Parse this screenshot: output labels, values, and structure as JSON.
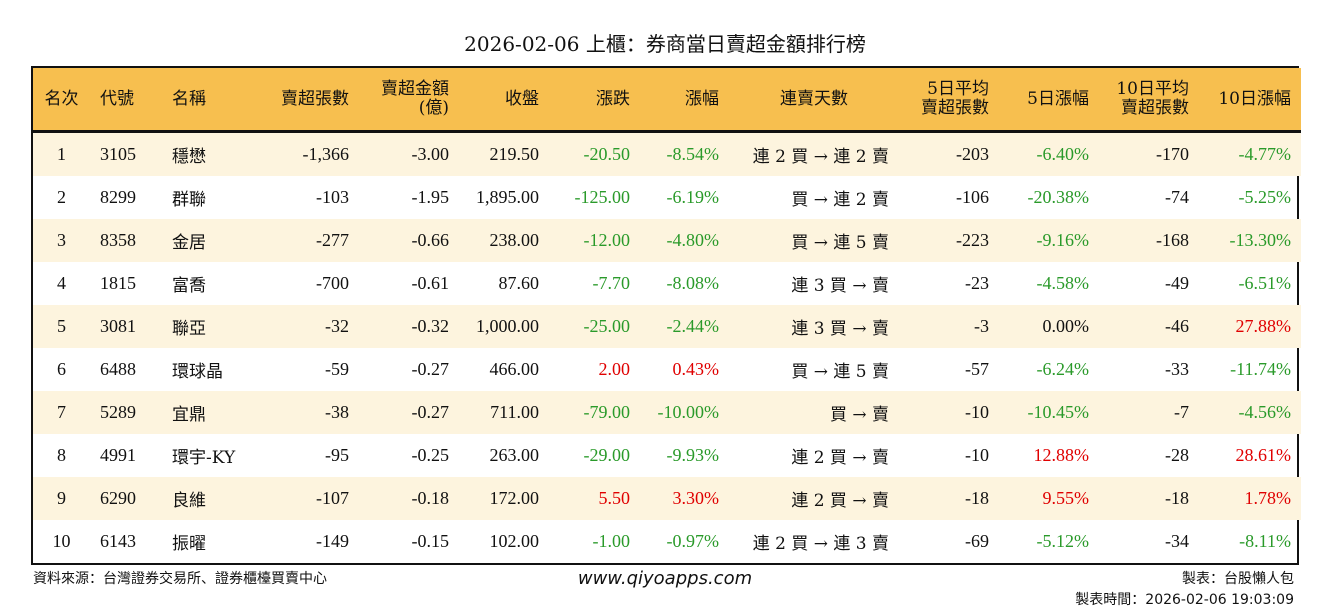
{
  "title": "2026-02-06 上櫃：券商當日賣超金額排行榜",
  "colors": {
    "header_bg": "#f7bf4f",
    "odd_row_bg": "#fdf4de",
    "up": "#e00000",
    "down": "#2a9a2a"
  },
  "headers": [
    "名次",
    "代號",
    "名稱",
    "賣超張數",
    "賣超金額\n(億)",
    "收盤",
    "漲跌",
    "漲幅",
    "連賣天數",
    "5日平均\n賣超張數",
    "5日漲幅",
    "10日平均\n賣超張數",
    "10日漲幅"
  ],
  "rows": [
    [
      "1",
      "3105",
      "穩懋",
      "-1,366",
      "-3.00",
      "219.50",
      "-20.50",
      "-8.54%",
      "連 2 買 → 連 2 賣",
      "-203",
      "-6.40%",
      "-170",
      "-4.77%"
    ],
    [
      "2",
      "8299",
      "群聯",
      "-103",
      "-1.95",
      "1,895.00",
      "-125.00",
      "-6.19%",
      "買 → 連 2 賣",
      "-106",
      "-20.38%",
      "-74",
      "-5.25%"
    ],
    [
      "3",
      "8358",
      "金居",
      "-277",
      "-0.66",
      "238.00",
      "-12.00",
      "-4.80%",
      "買 → 連 5 賣",
      "-223",
      "-9.16%",
      "-168",
      "-13.30%"
    ],
    [
      "4",
      "1815",
      "富喬",
      "-700",
      "-0.61",
      "87.60",
      "-7.70",
      "-8.08%",
      "連 3 買 → 賣",
      "-23",
      "-4.58%",
      "-49",
      "-6.51%"
    ],
    [
      "5",
      "3081",
      "聯亞",
      "-32",
      "-0.32",
      "1,000.00",
      "-25.00",
      "-2.44%",
      "連 3 買 → 賣",
      "-3",
      "0.00%",
      "-46",
      "27.88%"
    ],
    [
      "6",
      "6488",
      "環球晶",
      "-59",
      "-0.27",
      "466.00",
      "2.00",
      "0.43%",
      "買 → 連 5 賣",
      "-57",
      "-6.24%",
      "-33",
      "-11.74%"
    ],
    [
      "7",
      "5289",
      "宜鼎",
      "-38",
      "-0.27",
      "711.00",
      "-79.00",
      "-10.00%",
      "買 → 賣",
      "-10",
      "-10.45%",
      "-7",
      "-4.56%"
    ],
    [
      "8",
      "4991",
      "環宇-KY",
      "-95",
      "-0.25",
      "263.00",
      "-29.00",
      "-9.93%",
      "連 2 買 → 賣",
      "-10",
      "12.88%",
      "-28",
      "28.61%"
    ],
    [
      "9",
      "6290",
      "良維",
      "-107",
      "-0.18",
      "172.00",
      "5.50",
      "3.30%",
      "連 2 買 → 賣",
      "-18",
      "9.55%",
      "-18",
      "1.78%"
    ],
    [
      "10",
      "6143",
      "振曜",
      "-149",
      "-0.15",
      "102.00",
      "-1.00",
      "-0.97%",
      "連 2 買 → 連 3 賣",
      "-69",
      "-5.12%",
      "-34",
      "-8.11%"
    ]
  ],
  "footer": {
    "source": "資料來源：台灣證券交易所、證券櫃檯買賣中心",
    "website": "www.qiyoapps.com",
    "author": "製表：台股懶人包",
    "time": "製表時間：2026-02-06 19:03:09"
  }
}
